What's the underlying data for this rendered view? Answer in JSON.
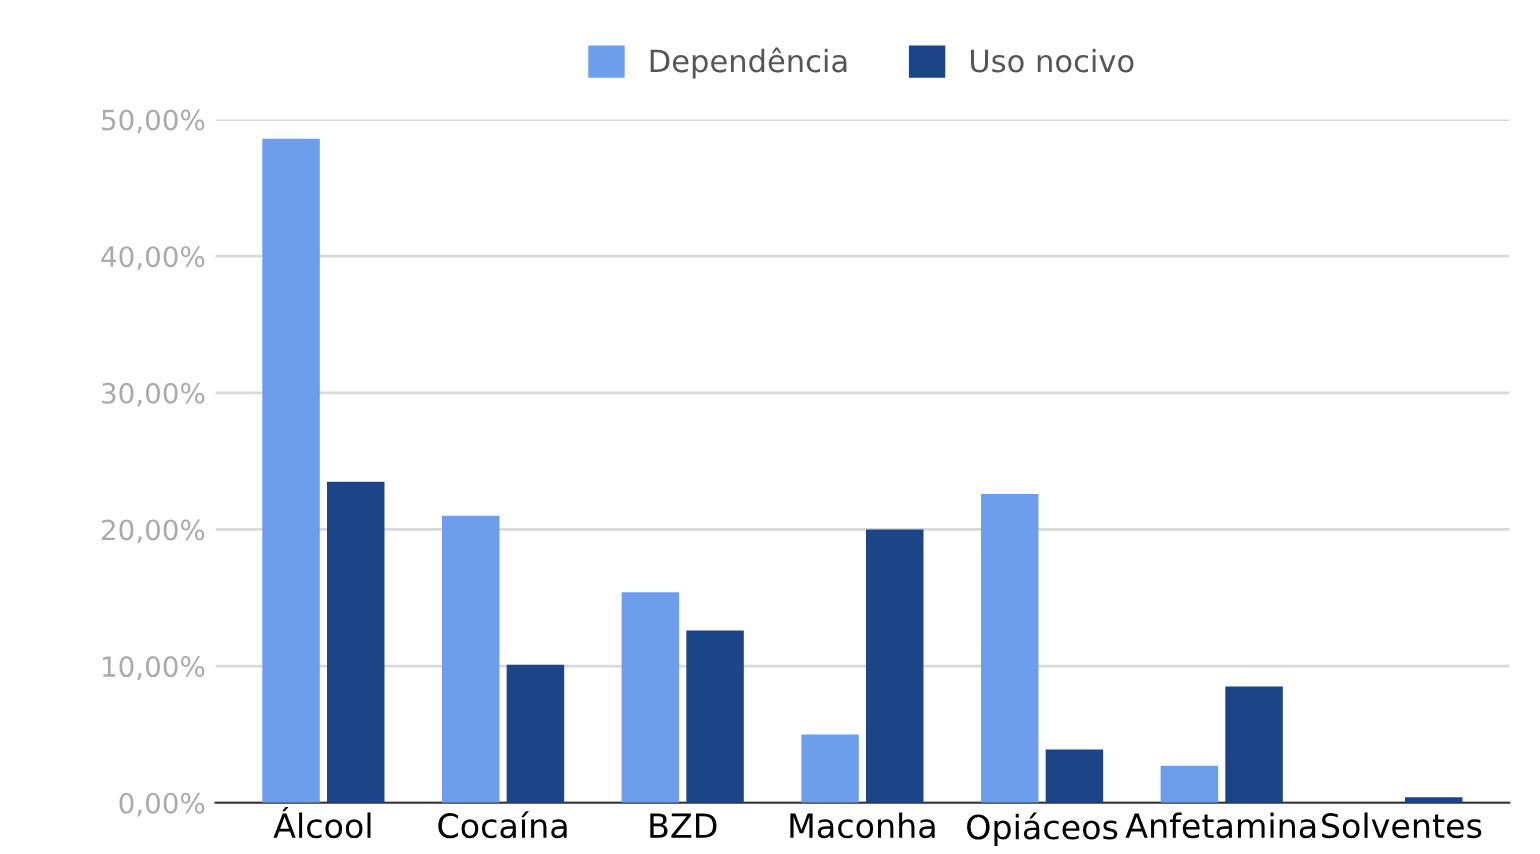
{
  "chart_data": {
    "type": "bar",
    "categories": [
      "Álcool",
      "Cocaína",
      "BZD",
      "Maconha",
      "Opiáceos",
      "Anfetamina",
      "Solventes"
    ],
    "series": [
      {
        "name": "Dependência",
        "color": "#6d9eeb",
        "values": [
          48.6,
          21.0,
          15.4,
          5.0,
          22.6,
          2.7,
          0
        ]
      },
      {
        "name": "Uso nocivo",
        "color": "#1c4587",
        "values": [
          23.5,
          10.1,
          12.6,
          20.0,
          3.9,
          8.5,
          0.4
        ]
      }
    ],
    "ylim": [
      0,
      50
    ],
    "yticks": [
      {
        "value": 0,
        "label": "0,00%"
      },
      {
        "value": 10,
        "label": "10,00%"
      },
      {
        "value": 20,
        "label": "20,00%"
      },
      {
        "value": 30,
        "label": "30,00%"
      },
      {
        "value": 40,
        "label": "40,00%"
      },
      {
        "value": 50,
        "label": "50,00%"
      }
    ],
    "grid": "y",
    "legend": "top"
  }
}
